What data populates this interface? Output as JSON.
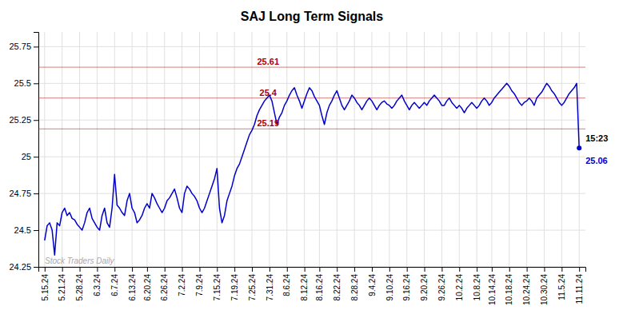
{
  "chart_data": {
    "type": "line",
    "title": "SAJ Long Term Signals",
    "color": "#0000cc",
    "grid": true,
    "ylim": [
      24.25,
      25.85
    ],
    "yticks": [
      24.25,
      24.5,
      24.75,
      25,
      25.25,
      25.5,
      25.75
    ],
    "reference_lines": [
      {
        "y": 25.61,
        "label": "25.61",
        "color": "#aa0000"
      },
      {
        "y": 25.4,
        "label": "25.4",
        "color": "#aa0000"
      },
      {
        "y": 25.19,
        "label": "25.19",
        "color": "#aa0000"
      }
    ],
    "annotations": [
      {
        "text": "15:23",
        "color": "#000000"
      },
      {
        "text": "25.06",
        "color": "#0000cc"
      }
    ],
    "watermark": {
      "text": "Stock Traders Daily",
      "color": "#aaaaaa"
    },
    "categories": [
      "5.15.24",
      null,
      null,
      null,
      null,
      null,
      null,
      "5.21.24",
      null,
      null,
      null,
      null,
      null,
      null,
      "5.28.24",
      null,
      null,
      null,
      null,
      null,
      null,
      "6.3.24",
      null,
      null,
      null,
      null,
      null,
      null,
      "6.7.24",
      null,
      null,
      null,
      null,
      null,
      null,
      "6.13.24",
      null,
      null,
      null,
      null,
      null,
      "6.20.24",
      null,
      null,
      null,
      null,
      null,
      null,
      "6.26.24",
      null,
      null,
      null,
      null,
      null,
      null,
      "7.2.24",
      null,
      null,
      null,
      null,
      null,
      null,
      "7.9.24",
      null,
      null,
      null,
      null,
      null,
      null,
      "7.15.24",
      null,
      null,
      null,
      null,
      null,
      null,
      "7.19.24",
      null,
      null,
      null,
      null,
      null,
      null,
      "7.25.24",
      null,
      null,
      null,
      null,
      null,
      null,
      "7.31.24",
      null,
      null,
      null,
      null,
      null,
      null,
      "8.6.24",
      null,
      null,
      null,
      null,
      null,
      null,
      "8.12.24",
      null,
      null,
      null,
      null,
      null,
      "8.16.24",
      null,
      null,
      null,
      null,
      null,
      null,
      "8.22.24",
      null,
      null,
      null,
      null,
      null,
      null,
      "8.28.24",
      null,
      null,
      null,
      null,
      null,
      null,
      "9.4.24",
      null,
      null,
      null,
      null,
      null,
      null,
      "9.10.24",
      null,
      null,
      null,
      null,
      null,
      null,
      "9.16.24",
      null,
      null,
      null,
      null,
      null,
      null,
      "9.20.24",
      null,
      null,
      null,
      null,
      null,
      null,
      "9.26.24",
      null,
      null,
      null,
      null,
      null,
      null,
      "10.2.24",
      null,
      null,
      null,
      null,
      null,
      null,
      "10.8.24",
      null,
      null,
      null,
      null,
      null,
      "10.14.24",
      null,
      null,
      null,
      null,
      null,
      null,
      "10.18.24",
      null,
      null,
      null,
      null,
      null,
      null,
      "10.24.24",
      null,
      null,
      null,
      null,
      null,
      null,
      "10.30.24",
      null,
      null,
      null,
      null,
      null,
      null,
      "11.5.24",
      null,
      null,
      null,
      null,
      null,
      null,
      "11.11.24"
    ],
    "values": [
      24.43,
      24.53,
      24.55,
      24.5,
      24.33,
      24.55,
      24.53,
      24.62,
      24.65,
      24.6,
      24.62,
      24.58,
      24.57,
      24.54,
      24.52,
      24.5,
      24.55,
      24.62,
      24.65,
      24.58,
      24.55,
      24.52,
      24.5,
      24.6,
      24.65,
      24.55,
      24.52,
      24.65,
      24.88,
      24.67,
      24.65,
      24.62,
      24.6,
      24.7,
      24.75,
      24.65,
      24.62,
      24.55,
      24.57,
      24.6,
      24.65,
      24.68,
      24.65,
      24.75,
      24.72,
      24.68,
      24.65,
      24.62,
      24.65,
      24.7,
      24.72,
      24.75,
      24.78,
      24.72,
      24.65,
      24.62,
      24.75,
      24.8,
      24.78,
      24.75,
      24.73,
      24.7,
      24.65,
      24.62,
      24.65,
      24.7,
      24.75,
      24.8,
      24.85,
      24.92,
      24.65,
      24.55,
      24.6,
      24.7,
      24.75,
      24.8,
      24.87,
      24.92,
      24.95,
      25.0,
      25.05,
      25.1,
      25.15,
      25.18,
      25.22,
      25.28,
      25.32,
      25.35,
      25.38,
      25.4,
      25.42,
      25.38,
      25.3,
      25.22,
      25.27,
      25.3,
      25.35,
      25.38,
      25.42,
      25.45,
      25.47,
      25.42,
      25.38,
      25.33,
      25.38,
      25.43,
      25.47,
      25.45,
      25.41,
      25.38,
      25.35,
      25.28,
      25.22,
      25.3,
      25.35,
      25.38,
      25.42,
      25.45,
      25.4,
      25.35,
      25.32,
      25.35,
      25.38,
      25.42,
      25.4,
      25.37,
      25.35,
      25.32,
      25.35,
      25.38,
      25.4,
      25.38,
      25.35,
      25.32,
      25.35,
      25.37,
      25.38,
      25.36,
      25.35,
      25.33,
      25.35,
      25.38,
      25.4,
      25.42,
      25.38,
      25.35,
      25.32,
      25.35,
      25.37,
      25.35,
      25.33,
      25.35,
      25.37,
      25.35,
      25.38,
      25.4,
      25.42,
      25.4,
      25.38,
      25.35,
      25.35,
      25.38,
      25.4,
      25.37,
      25.35,
      25.33,
      25.35,
      25.33,
      25.3,
      25.33,
      25.35,
      25.37,
      25.35,
      25.33,
      25.35,
      25.38,
      25.4,
      25.38,
      25.35,
      25.37,
      25.4,
      25.42,
      25.44,
      25.46,
      25.48,
      25.5,
      25.48,
      25.45,
      25.43,
      25.4,
      25.37,
      25.35,
      25.37,
      25.38,
      25.4,
      25.38,
      25.35,
      25.4,
      25.42,
      25.44,
      25.47,
      25.5,
      25.48,
      25.45,
      25.43,
      25.4,
      25.37,
      25.35,
      25.37,
      25.4,
      25.43,
      25.45,
      25.47,
      25.5,
      25.06
    ]
  }
}
